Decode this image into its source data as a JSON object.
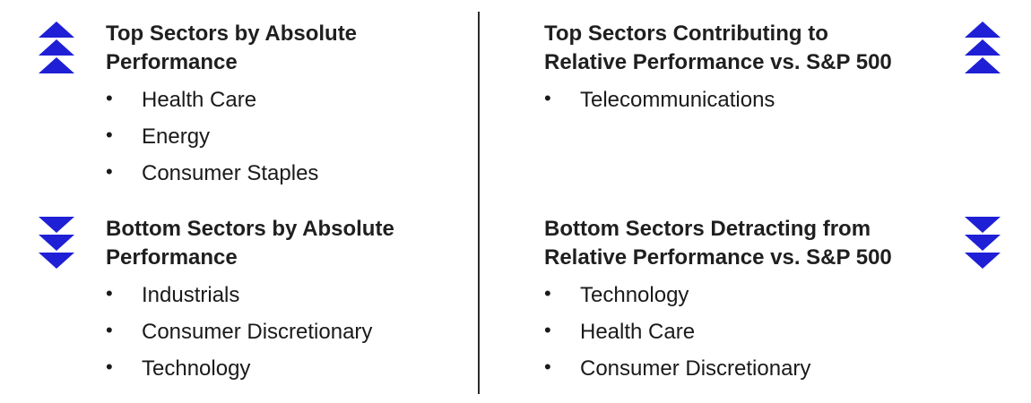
{
  "top_absolute": {
    "title_line1": "Top Sectors by Absolute",
    "title_line2": "Performance",
    "items": [
      "Health Care",
      "Energy",
      "Consumer Staples"
    ],
    "icon": "triple-up-arrow-icon"
  },
  "bottom_absolute": {
    "title_line1": "Bottom Sectors by Absolute",
    "title_line2": "Performance",
    "items": [
      "Industrials",
      "Consumer Discretionary",
      "Technology"
    ],
    "icon": "triple-down-arrow-icon"
  },
  "top_relative": {
    "title_line1": "Top Sectors Contributing to",
    "title_line2": "Relative Performance vs. S&P 500",
    "items": [
      "Telecommunications"
    ],
    "icon": "triple-up-arrow-icon"
  },
  "bottom_relative": {
    "title_line1": "Bottom Sectors Detracting from",
    "title_line2": "Relative Performance vs. S&P 500",
    "items": [
      "Technology",
      "Health Care",
      "Consumer Discretionary"
    ],
    "icon": "triple-down-arrow-icon"
  },
  "bullet_symbol": "•",
  "colors": {
    "arrow": "#1f1fd6",
    "text": "#1a1a1a",
    "divider": "#2b2b2b"
  }
}
